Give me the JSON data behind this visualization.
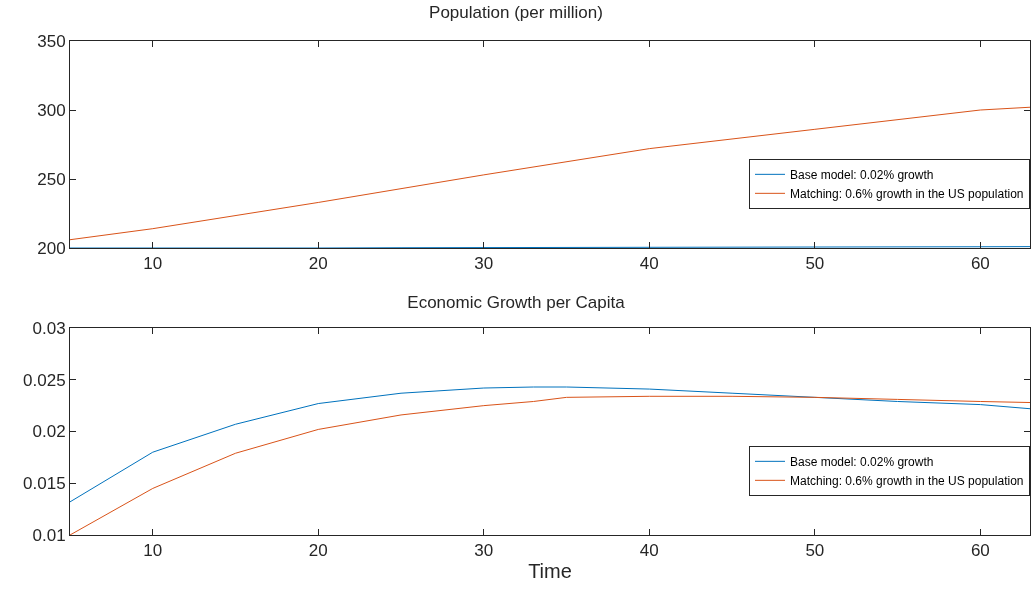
{
  "chart_data": [
    {
      "type": "line",
      "title": "Population (per million)",
      "xlim": [
        5,
        63
      ],
      "xticks": [
        10,
        20,
        30,
        40,
        50,
        60
      ],
      "ylim": [
        200,
        350
      ],
      "yticks": [
        200,
        250,
        300,
        350
      ],
      "grid": false,
      "legend": "right",
      "line_style": "solid",
      "marker": "none",
      "series": [
        {
          "name": "Base model: 0.02% growth",
          "color": "#0072bd",
          "x": [
            5,
            10,
            20,
            25,
            30,
            40,
            50,
            60,
            63
          ],
          "values": [
            200,
            200,
            200,
            200.2,
            200.3,
            200.5,
            200.7,
            200.9,
            201
          ]
        },
        {
          "name": "Matching: 0.6% growth in the US population",
          "color": "#d95319",
          "x": [
            5,
            10,
            20,
            30,
            40,
            50,
            60,
            63
          ],
          "values": [
            206,
            214,
            233,
            253,
            272,
            286,
            300,
            302
          ]
        }
      ]
    },
    {
      "type": "line",
      "title": "Economic Growth per Capita",
      "xlabel": "Time",
      "xlim": [
        5,
        63
      ],
      "xticks": [
        10,
        20,
        30,
        40,
        50,
        60
      ],
      "ylim": [
        0.01,
        0.03
      ],
      "yticks": [
        0.01,
        0.015,
        0.02,
        0.025,
        0.03
      ],
      "grid": false,
      "legend": "right",
      "line_style": "solid",
      "marker": "none",
      "series": [
        {
          "name": "Base model: 0.02% growth",
          "color": "#0072bd",
          "x": [
            5,
            10,
            15,
            20,
            25,
            30,
            33,
            35,
            40,
            45,
            50,
            55,
            60,
            63
          ],
          "values": [
            0.0132,
            0.018,
            0.0207,
            0.0227,
            0.0237,
            0.0242,
            0.0243,
            0.0243,
            0.0241,
            0.0237,
            0.0233,
            0.0229,
            0.0226,
            0.0222
          ]
        },
        {
          "name": "Matching: 0.6% growth in the US population",
          "color": "#d95319",
          "x": [
            5,
            10,
            15,
            20,
            25,
            30,
            33,
            35,
            40,
            45,
            50,
            55,
            60,
            63
          ],
          "values": [
            0.01,
            0.0145,
            0.0179,
            0.0202,
            0.0216,
            0.0225,
            0.0229,
            0.0233,
            0.0234,
            0.0234,
            0.0233,
            0.0231,
            0.0229,
            0.0228
          ]
        }
      ]
    }
  ]
}
